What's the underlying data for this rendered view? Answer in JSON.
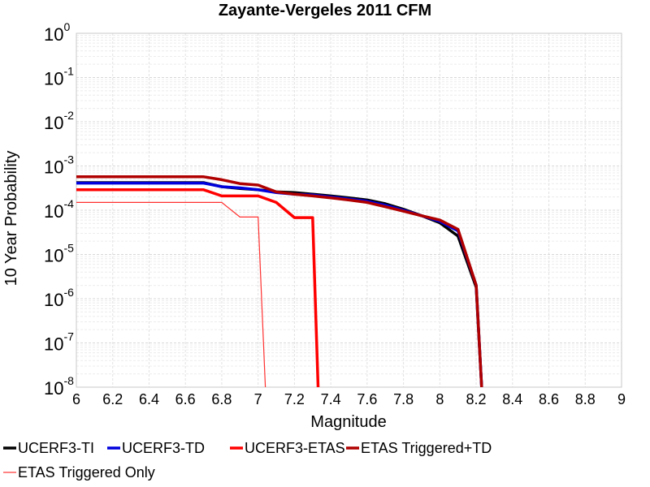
{
  "chart_data": {
    "type": "line",
    "title": "Zayante-Vergeles 2011 CFM",
    "xlabel": "Magnitude",
    "ylabel": "10 Year Probability",
    "xlim": [
      6,
      9
    ],
    "ylim": [
      1e-08,
      1
    ],
    "yscale": "log",
    "grid": true,
    "legend_position": "bottom",
    "x_ticks": [
      "6",
      "6.2",
      "6.4",
      "6.6",
      "6.8",
      "7",
      "7.2",
      "7.4",
      "7.6",
      "7.8",
      "8",
      "8.2",
      "8.4",
      "8.6",
      "8.8",
      "9"
    ],
    "y_ticks": [
      {
        "base": "10",
        "exp": "0"
      },
      {
        "base": "10",
        "exp": "-1"
      },
      {
        "base": "10",
        "exp": "-2"
      },
      {
        "base": "10",
        "exp": "-3"
      },
      {
        "base": "10",
        "exp": "-4"
      },
      {
        "base": "10",
        "exp": "-5"
      },
      {
        "base": "10",
        "exp": "-6"
      },
      {
        "base": "10",
        "exp": "-7"
      },
      {
        "base": "10",
        "exp": "-8"
      }
    ],
    "series": [
      {
        "name": "UCERF3-TI",
        "color": "#000000",
        "width": 3.5,
        "points": [
          [
            6.0,
            0.00042
          ],
          [
            6.7,
            0.00042
          ],
          [
            6.8,
            0.00034
          ],
          [
            6.9,
            0.00031
          ],
          [
            7.0,
            0.00029
          ],
          [
            7.1,
            0.00026
          ],
          [
            7.2,
            0.00025
          ],
          [
            7.3,
            0.00023
          ],
          [
            7.4,
            0.00021
          ],
          [
            7.5,
            0.00019
          ],
          [
            7.6,
            0.00017
          ],
          [
            7.7,
            0.00014
          ],
          [
            7.8,
            0.000105
          ],
          [
            7.9,
            7.5e-05
          ],
          [
            8.0,
            5.2e-05
          ],
          [
            8.1,
            2.6e-05
          ],
          [
            8.2,
            1.8e-06
          ],
          [
            8.23,
            1e-08
          ]
        ]
      },
      {
        "name": "UCERF3-TD",
        "color": "#0000dd",
        "width": 3.5,
        "points": [
          [
            6.0,
            0.00041
          ],
          [
            6.7,
            0.00041
          ],
          [
            6.8,
            0.00034
          ],
          [
            6.9,
            0.00032
          ],
          [
            7.0,
            0.00029
          ],
          [
            7.1,
            0.00025
          ],
          [
            7.2,
            0.00023
          ],
          [
            7.3,
            0.00022
          ],
          [
            7.4,
            0.0002
          ],
          [
            7.5,
            0.00018
          ],
          [
            7.6,
            0.00016
          ],
          [
            7.7,
            0.00013
          ],
          [
            7.8,
            0.0001
          ],
          [
            7.9,
            7.5e-05
          ],
          [
            8.0,
            5.6e-05
          ],
          [
            8.1,
            3.4e-05
          ],
          [
            8.2,
            2e-06
          ],
          [
            8.23,
            1e-08
          ]
        ]
      },
      {
        "name": "UCERF3-ETAS",
        "color": "#ff0000",
        "width": 3.5,
        "points": [
          [
            6.0,
            0.00029
          ],
          [
            6.7,
            0.00029
          ],
          [
            6.8,
            0.00021
          ],
          [
            6.9,
            0.00021
          ],
          [
            7.0,
            0.00021
          ],
          [
            7.1,
            0.00015
          ],
          [
            7.2,
            6.8e-05
          ],
          [
            7.3,
            6.8e-05
          ],
          [
            7.33,
            1e-08
          ]
        ]
      },
      {
        "name": "ETAS Triggered+TD",
        "color": "#b00000",
        "width": 3.5,
        "points": [
          [
            6.0,
            0.00057
          ],
          [
            6.7,
            0.00057
          ],
          [
            6.8,
            0.00049
          ],
          [
            6.9,
            0.0004
          ],
          [
            7.0,
            0.00037
          ],
          [
            7.1,
            0.00026
          ],
          [
            7.2,
            0.00023
          ],
          [
            7.3,
            0.00021
          ],
          [
            7.4,
            0.00019
          ],
          [
            7.5,
            0.00017
          ],
          [
            7.6,
            0.00015
          ],
          [
            7.7,
            0.00012
          ],
          [
            7.8,
            9.5e-05
          ],
          [
            7.9,
            7.5e-05
          ],
          [
            8.0,
            6e-05
          ],
          [
            8.1,
            3.7e-05
          ],
          [
            8.2,
            2e-06
          ],
          [
            8.23,
            1e-08
          ]
        ]
      },
      {
        "name": "ETAS Triggered Only",
        "color": "#ff3030",
        "width": 1.2,
        "points": [
          [
            6.0,
            0.00015
          ],
          [
            6.8,
            0.00015
          ],
          [
            6.9,
            7e-05
          ],
          [
            7.0,
            7e-05
          ],
          [
            7.04,
            1e-08
          ]
        ]
      }
    ]
  }
}
